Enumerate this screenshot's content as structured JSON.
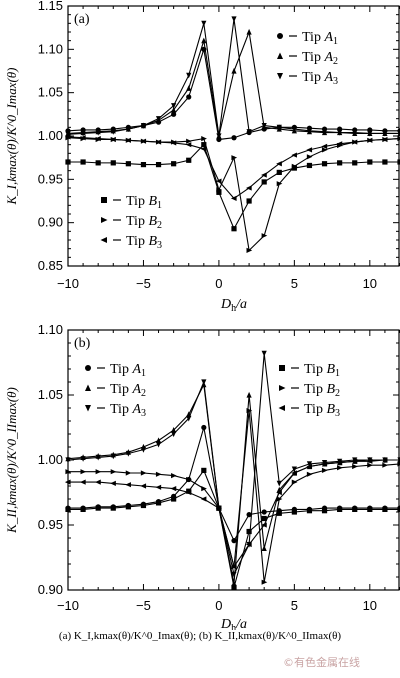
{
  "chart_data": [
    {
      "type": "line",
      "panel_label": "(a)",
      "ylabel": "K_I,kmax(θ)/K^0_Imax(θ)",
      "xlabel": "D_h/a",
      "xlim": [
        -10,
        12
      ],
      "ylim": [
        0.85,
        1.15
      ],
      "xticks": [
        -10,
        -5,
        0,
        5,
        10
      ],
      "yticks": [
        0.85,
        0.9,
        0.95,
        1.0,
        1.05,
        1.1,
        1.15
      ],
      "ytick_labels": [
        "0.85",
        "0.90",
        "0.95",
        "1.00",
        "1.05",
        "1.10",
        "1.15"
      ],
      "legend_left": "bottom-left",
      "legend_right": "top-right",
      "x": [
        -10,
        -9,
        -8,
        -7,
        -6,
        -5,
        -4,
        -3,
        -2,
        -1,
        0,
        1,
        2,
        3,
        4,
        5,
        6,
        7,
        8,
        9,
        10,
        11,
        12
      ],
      "series": [
        {
          "name": "Tip A1",
          "marker": "circle",
          "legend": "right",
          "values": [
            1.006,
            1.007,
            1.007,
            1.008,
            1.01,
            1.012,
            1.016,
            1.025,
            1.045,
            1.1,
            0.996,
            0.998,
            1.004,
            1.008,
            1.01,
            1.01,
            1.009,
            1.008,
            1.008,
            1.007,
            1.007,
            1.006,
            1.006
          ]
        },
        {
          "name": "Tip A2",
          "marker": "triangle-up",
          "legend": "right",
          "values": [
            1.003,
            1.004,
            1.005,
            1.006,
            1.008,
            1.012,
            1.018,
            1.03,
            1.055,
            1.11,
            1.0,
            1.075,
            1.12,
            1.01,
            1.008,
            1.006,
            1.005,
            1.004,
            1.004,
            1.003,
            1.003,
            1.003,
            1.003
          ]
        },
        {
          "name": "Tip A3",
          "marker": "triangle-down",
          "legend": "right",
          "values": [
            1.002,
            1.003,
            1.004,
            1.005,
            1.008,
            1.012,
            1.02,
            1.035,
            1.07,
            1.13,
            1.0,
            1.135,
            1.005,
            1.012,
            1.01,
            1.008,
            1.006,
            1.005,
            1.004,
            1.004,
            1.003,
            1.003,
            1.003
          ]
        },
        {
          "name": "Tip B1",
          "marker": "square",
          "legend": "left",
          "values": [
            0.97,
            0.97,
            0.969,
            0.969,
            0.968,
            0.967,
            0.967,
            0.968,
            0.972,
            0.99,
            0.935,
            0.893,
            0.925,
            0.947,
            0.958,
            0.963,
            0.966,
            0.968,
            0.969,
            0.969,
            0.97,
            0.97,
            0.97
          ]
        },
        {
          "name": "Tip B2",
          "marker": "triangle-right",
          "legend": "left",
          "values": [
            0.998,
            0.997,
            0.996,
            0.996,
            0.995,
            0.994,
            0.993,
            0.993,
            0.994,
            0.997,
            0.938,
            0.975,
            0.868,
            0.885,
            0.945,
            0.965,
            0.976,
            0.984,
            0.989,
            0.993,
            0.995,
            0.996,
            0.997
          ]
        },
        {
          "name": "Tip B3",
          "marker": "triangle-left",
          "legend": "left",
          "values": [
            0.999,
            0.998,
            0.997,
            0.996,
            0.995,
            0.994,
            0.993,
            0.992,
            0.99,
            0.985,
            0.948,
            0.928,
            0.94,
            0.955,
            0.968,
            0.978,
            0.984,
            0.988,
            0.991,
            0.993,
            0.995,
            0.996,
            0.997
          ]
        }
      ]
    },
    {
      "type": "line",
      "panel_label": "(b)",
      "ylabel": "K_II,kmax(θ)/K^0_IImax(θ)",
      "xlabel": "D_h/a",
      "xlim": [
        -10,
        12
      ],
      "ylim": [
        0.9,
        1.1
      ],
      "xticks": [
        -10,
        -5,
        0,
        5,
        10
      ],
      "yticks": [
        0.9,
        0.95,
        1.0,
        1.05,
        1.1
      ],
      "ytick_labels": [
        "0.90",
        "0.95",
        "1.00",
        "1.05",
        "1.10"
      ],
      "legend_left": "top-left",
      "legend_right": "top-right",
      "x": [
        -10,
        -9,
        -8,
        -7,
        -6,
        -5,
        -4,
        -3,
        -2,
        -1,
        0,
        1,
        2,
        3,
        4,
        5,
        6,
        7,
        8,
        9,
        10,
        11,
        12
      ],
      "series": [
        {
          "name": "Tip A1",
          "marker": "circle",
          "legend": "left",
          "values": [
            0.963,
            0.963,
            0.964,
            0.964,
            0.965,
            0.966,
            0.968,
            0.972,
            0.985,
            1.025,
            0.963,
            0.938,
            0.958,
            0.96,
            0.961,
            0.962,
            0.962,
            0.963,
            0.963,
            0.963,
            0.963,
            0.963,
            0.963
          ]
        },
        {
          "name": "Tip A2",
          "marker": "triangle-up",
          "legend": "left",
          "values": [
            1.001,
            1.002,
            1.003,
            1.004,
            1.006,
            1.01,
            1.015,
            1.023,
            1.035,
            1.058,
            0.963,
            0.905,
            1.05,
            0.932,
            0.977,
            0.99,
            0.995,
            0.997,
            0.998,
            0.999,
            1.0,
            1.0,
            1.0
          ]
        },
        {
          "name": "Tip A3",
          "marker": "triangle-down",
          "legend": "left",
          "values": [
            1.0,
            1.001,
            1.002,
            1.003,
            1.005,
            1.008,
            1.012,
            1.02,
            1.032,
            1.06,
            0.963,
            0.912,
            0.935,
            1.082,
            0.982,
            0.993,
            0.997,
            0.998,
            0.999,
            1.0,
            1.0,
            1.0,
            1.0
          ]
        },
        {
          "name": "Tip B1",
          "marker": "square",
          "legend": "right",
          "values": [
            0.962,
            0.962,
            0.963,
            0.963,
            0.964,
            0.965,
            0.967,
            0.97,
            0.976,
            0.992,
            0.963,
            0.902,
            0.945,
            0.955,
            0.959,
            0.96,
            0.961,
            0.961,
            0.962,
            0.962,
            0.962,
            0.962,
            0.962
          ]
        },
        {
          "name": "Tip B2",
          "marker": "triangle-right",
          "legend": "right",
          "values": [
            0.991,
            0.991,
            0.991,
            0.991,
            0.99,
            0.99,
            0.989,
            0.988,
            0.985,
            0.978,
            0.963,
            0.918,
            1.038,
            0.906,
            0.97,
            0.983,
            0.989,
            0.992,
            0.994,
            0.995,
            0.996,
            0.996,
            0.997
          ]
        },
        {
          "name": "Tip B3",
          "marker": "triangle-left",
          "legend": "right",
          "values": [
            0.983,
            0.983,
            0.983,
            0.982,
            0.981,
            0.98,
            0.979,
            0.978,
            0.975,
            0.97,
            0.963,
            0.918,
            0.935,
            0.95,
            0.975,
            0.99,
            0.995,
            0.997,
            0.998,
            0.999,
            0.999,
            1.0,
            1.0
          ]
        }
      ]
    }
  ],
  "caption": "(a) K_I,kmax(θ)/K^0_Imax(θ); (b) K_II,kmax(θ)/K^0_IImax(θ)",
  "watermark": "©有色金属在线"
}
